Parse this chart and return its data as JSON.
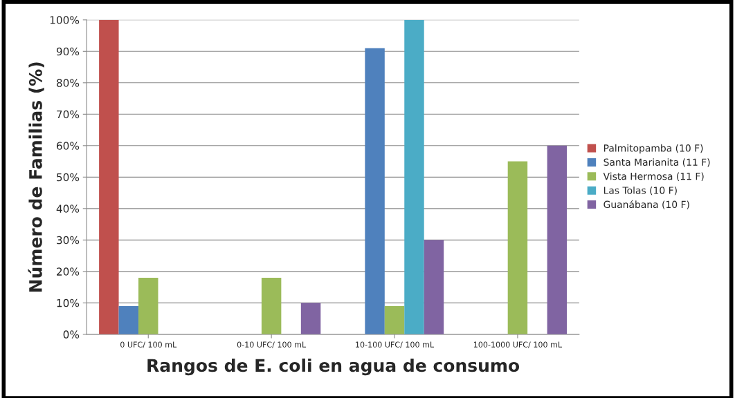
{
  "chart_data": {
    "type": "bar",
    "xlabel": "Rangos de E. coli en agua de consumo",
    "ylabel": "Número de Familias (%)",
    "categories": [
      "0 UFC/ 100 mL",
      "0-10 UFC/ 100 mL",
      "10-100 UFC/ 100 mL",
      "100-1000 UFC/ 100 mL"
    ],
    "series": [
      {
        "name": "Palmitopamba (10 F)",
        "color": "#c0504d",
        "values": [
          100,
          null,
          null,
          null
        ]
      },
      {
        "name": "Santa Marianita (11 F)",
        "color": "#4f81bd",
        "values": [
          9,
          null,
          91,
          null
        ]
      },
      {
        "name": "Vista Hermosa (11 F)",
        "color": "#9bbb59",
        "values": [
          18,
          18,
          9,
          55
        ]
      },
      {
        "name": "Las Tolas (10 F)",
        "color": "#4bacc6",
        "values": [
          null,
          null,
          100,
          null
        ]
      },
      {
        "name": "Guanábana (10 F)",
        "color": "#8064a2",
        "values": [
          null,
          10,
          30,
          60
        ]
      }
    ],
    "ylim": [
      0,
      100
    ],
    "yticks": [
      {
        "value": 0,
        "label": "0%"
      },
      {
        "value": 10,
        "label": "10%"
      },
      {
        "value": 20,
        "label": "20%"
      },
      {
        "value": 30,
        "label": "30%"
      },
      {
        "value": 40,
        "label": "40%"
      },
      {
        "value": 50,
        "label": "50%"
      },
      {
        "value": 60,
        "label": "60%"
      },
      {
        "value": 70,
        "label": "70%"
      },
      {
        "value": 80,
        "label": "80%"
      },
      {
        "value": 90,
        "label": "90%"
      },
      {
        "value": 100,
        "label": "100%"
      }
    ],
    "grid": "y",
    "legend": "right"
  }
}
